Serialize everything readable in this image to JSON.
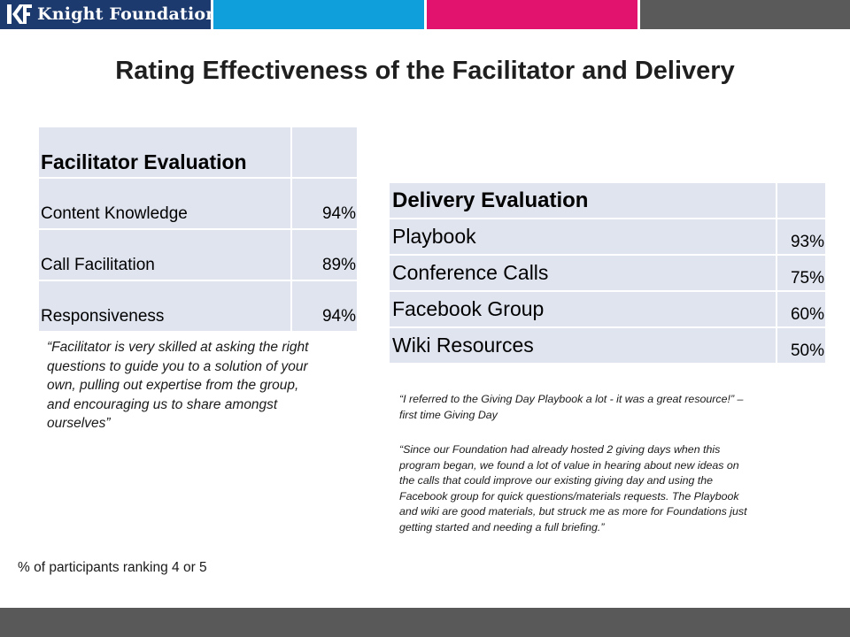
{
  "brand": {
    "name": "Knight Foundation",
    "logo_icon": "kf-logo-icon",
    "colors": {
      "navy": "#1d3a6e",
      "blue": "#0fa0dc",
      "pink": "#e2136f",
      "gray": "#5a5a5a",
      "table_fill": "#dfe4ef"
    }
  },
  "title": "Rating Effectiveness of the Facilitator and Delivery",
  "facilitator": {
    "header": "Facilitator Evaluation",
    "rows": [
      {
        "label": "Content Knowledge",
        "value": "94%"
      },
      {
        "label": "Call Facilitation",
        "value": "89%"
      },
      {
        "label": "Responsiveness",
        "value": "94%"
      }
    ],
    "quote_lines": [
      "“Facilitator is very skilled at asking the right",
      "questions to guide you to a solution of your",
      "own, pulling out expertise from the group,",
      "and encouraging us to share amongst",
      "ourselves”"
    ]
  },
  "delivery": {
    "header": "Delivery Evaluation",
    "rows": [
      {
        "label": "Playbook",
        "value": "93%"
      },
      {
        "label": "Conference Calls",
        "value": "75%"
      },
      {
        "label": "Facebook Group",
        "value": "60%"
      },
      {
        "label": "Wiki Resources",
        "value": "50%"
      }
    ],
    "quote1_lines": [
      "“I referred to the Giving Day Playbook a lot - it was a great resource!” –",
      "first time Giving Day"
    ],
    "quote2_lines": [
      "“Since our Foundation had already hosted 2 giving days when this",
      "program began, we found a lot of value in hearing about new ideas on",
      "the calls that could improve our existing giving day and using the",
      "Facebook group for quick questions/materials requests.  The Playbook",
      "and wiki are good materials, but struck me as more for Foundations just",
      "getting started and needing a full briefing.”"
    ]
  },
  "footnote": "% of participants ranking 4 or 5"
}
